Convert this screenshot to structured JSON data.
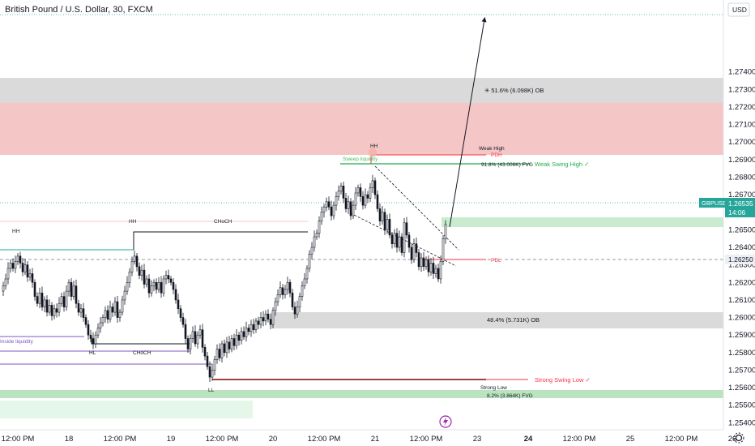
{
  "chart_data": {
    "type": "candlestick",
    "title": "British Pound / U.S. Dollar, 30, FXCM",
    "currency": "USD",
    "symbol": "GBPUSD",
    "ylim": [
      1.2536,
      1.2781
    ],
    "y_ticks": [
      "1.27400",
      "1.27300",
      "1.27200",
      "1.27100",
      "1.27000",
      "1.26900",
      "1.26800",
      "1.26700",
      "1.26600",
      "1.26500",
      "1.26400",
      "1.26300",
      "1.26200",
      "1.26100",
      "1.26000",
      "1.25900",
      "1.25800",
      "1.25700",
      "1.25600",
      "1.25500",
      "1.25400"
    ],
    "x_ticks": [
      "12:00 PM",
      "18",
      "12:00 PM",
      "19",
      "12:00 PM",
      "20",
      "12:00 PM",
      "21",
      "12:00 PM",
      "23",
      "24",
      "12:00 PM",
      "25",
      "12:00 PM",
      "26"
    ],
    "x_tick_bold_index": 10,
    "current_price": {
      "label": "GBPUSD",
      "price": "1.26535",
      "countdown": "14:06",
      "value": 1.26535
    },
    "price_tag_2": {
      "price": "1.26250",
      "value": 1.2625
    },
    "close_path": [
      [
        0,
        1.2615
      ],
      [
        3,
        1.2618
      ],
      [
        6,
        1.2622
      ],
      [
        9,
        1.2628
      ],
      [
        12,
        1.2631
      ],
      [
        15,
        1.2628
      ],
      [
        18,
        1.2632
      ],
      [
        21,
        1.2635
      ],
      [
        24,
        1.2631
      ],
      [
        27,
        1.2626
      ],
      [
        30,
        1.263
      ],
      [
        33,
        1.2623
      ],
      [
        36,
        1.2625
      ],
      [
        39,
        1.262
      ],
      [
        42,
        1.2612
      ],
      [
        45,
        1.2608
      ],
      [
        48,
        1.2614
      ],
      [
        51,
        1.2606
      ],
      [
        54,
        1.261
      ],
      [
        57,
        1.2603
      ],
      [
        60,
        1.2607
      ],
      [
        63,
        1.2601
      ],
      [
        66,
        1.2605
      ],
      [
        69,
        1.2603
      ],
      [
        72,
        1.2608
      ],
      [
        75,
        1.2612
      ],
      [
        78,
        1.2606
      ],
      [
        81,
        1.2615
      ],
      [
        84,
        1.262
      ],
      [
        87,
        1.2612
      ],
      [
        90,
        1.2618
      ],
      [
        93,
        1.2608
      ],
      [
        96,
        1.2603
      ],
      [
        99,
        1.2605
      ],
      [
        102,
        1.26
      ],
      [
        105,
        1.2596
      ],
      [
        108,
        1.259
      ],
      [
        111,
        1.2588
      ],
      [
        114,
        1.2585
      ],
      [
        117,
        1.259
      ],
      [
        120,
        1.2594
      ],
      [
        123,
        1.2597
      ],
      [
        126,
        1.26
      ],
      [
        129,
        1.2604
      ],
      [
        132,
        1.2599
      ],
      [
        135,
        1.2606
      ],
      [
        138,
        1.2603
      ],
      [
        141,
        1.2609
      ],
      [
        144,
        1.26
      ],
      [
        147,
        1.2603
      ],
      [
        150,
        1.261
      ],
      [
        153,
        1.2615
      ],
      [
        156,
        1.262
      ],
      [
        159,
        1.2626
      ],
      [
        162,
        1.2632
      ],
      [
        165,
        1.2635
      ],
      [
        168,
        1.2629
      ],
      [
        171,
        1.2624
      ],
      [
        174,
        1.2627
      ],
      [
        177,
        1.2619
      ],
      [
        180,
        1.2622
      ],
      [
        183,
        1.2614
      ],
      [
        186,
        1.2618
      ],
      [
        189,
        1.262
      ],
      [
        192,
        1.2616
      ],
      [
        195,
        1.262
      ],
      [
        198,
        1.2614
      ],
      [
        201,
        1.2622
      ],
      [
        204,
        1.2624
      ],
      [
        207,
        1.2622
      ],
      [
        210,
        1.262
      ],
      [
        213,
        1.2616
      ],
      [
        216,
        1.261
      ],
      [
        219,
        1.2605
      ],
      [
        222,
        1.26
      ],
      [
        225,
        1.2596
      ],
      [
        228,
        1.2588
      ],
      [
        231,
        1.2582
      ],
      [
        234,
        1.2588
      ],
      [
        237,
        1.2592
      ],
      [
        240,
        1.2585
      ],
      [
        243,
        1.259
      ],
      [
        246,
        1.2593
      ],
      [
        249,
        1.2583
      ],
      [
        252,
        1.2578
      ],
      [
        255,
        1.2572
      ],
      [
        258,
        1.2566
      ],
      [
        261,
        1.257
      ],
      [
        264,
        1.2576
      ],
      [
        267,
        1.2582
      ],
      [
        270,
        1.2577
      ],
      [
        273,
        1.2585
      ],
      [
        276,
        1.258
      ],
      [
        279,
        1.2586
      ],
      [
        282,
        1.2582
      ],
      [
        285,
        1.2588
      ],
      [
        288,
        1.2584
      ],
      [
        291,
        1.259
      ],
      [
        294,
        1.2587
      ],
      [
        297,
        1.2592
      ],
      [
        300,
        1.2589
      ],
      [
        303,
        1.2594
      ],
      [
        306,
        1.2592
      ],
      [
        309,
        1.2596
      ],
      [
        312,
        1.2593
      ],
      [
        315,
        1.2598
      ],
      [
        318,
        1.2596
      ],
      [
        321,
        1.26
      ],
      [
        324,
        1.2598
      ],
      [
        327,
        1.2602
      ],
      [
        330,
        1.2599
      ],
      [
        333,
        1.2596
      ],
      [
        336,
        1.2604
      ],
      [
        339,
        1.2609
      ],
      [
        342,
        1.2613
      ],
      [
        345,
        1.2617
      ],
      [
        348,
        1.2613
      ],
      [
        351,
        1.2616
      ],
      [
        354,
        1.262
      ],
      [
        357,
        1.2614
      ],
      [
        360,
        1.2606
      ],
      [
        363,
        1.2602
      ],
      [
        366,
        1.2606
      ],
      [
        369,
        1.2612
      ],
      [
        372,
        1.2618
      ],
      [
        375,
        1.2622
      ],
      [
        378,
        1.2628
      ],
      [
        381,
        1.2636
      ],
      [
        384,
        1.264
      ],
      [
        387,
        1.2646
      ],
      [
        390,
        1.2648
      ],
      [
        393,
        1.2655
      ],
      [
        396,
        1.266
      ],
      [
        399,
        1.2663
      ],
      [
        402,
        1.2666
      ],
      [
        405,
        1.2663
      ],
      [
        408,
        1.2658
      ],
      [
        411,
        1.2664
      ],
      [
        414,
        1.2669
      ],
      [
        417,
        1.2672
      ],
      [
        420,
        1.2675
      ],
      [
        423,
        1.2668
      ],
      [
        426,
        1.2662
      ],
      [
        429,
        1.2666
      ],
      [
        432,
        1.2658
      ],
      [
        435,
        1.2664
      ],
      [
        438,
        1.2671
      ],
      [
        441,
        1.2674
      ],
      [
        444,
        1.2669
      ],
      [
        447,
        1.2664
      ],
      [
        450,
        1.267
      ],
      [
        453,
        1.2668
      ],
      [
        456,
        1.2674
      ],
      [
        459,
        1.2678
      ],
      [
        462,
        1.267
      ],
      [
        465,
        1.2662
      ],
      [
        468,
        1.2655
      ],
      [
        471,
        1.266
      ],
      [
        474,
        1.265
      ],
      [
        477,
        1.2656
      ],
      [
        480,
        1.2647
      ],
      [
        483,
        1.2642
      ],
      [
        486,
        1.2648
      ],
      [
        489,
        1.264
      ],
      [
        492,
        1.2646
      ],
      [
        495,
        1.2637
      ],
      [
        498,
        1.2654
      ],
      [
        501,
        1.2647
      ],
      [
        504,
        1.264
      ],
      [
        507,
        1.2633
      ],
      [
        510,
        1.2642
      ],
      [
        513,
        1.2637
      ],
      [
        516,
        1.2629
      ],
      [
        519,
        1.2634
      ],
      [
        522,
        1.2629
      ],
      [
        525,
        1.2633
      ],
      [
        528,
        1.2626
      ],
      [
        531,
        1.2631
      ],
      [
        534,
        1.2625
      ],
      [
        537,
        1.2628
      ],
      [
        540,
        1.2622
      ],
      [
        543,
        1.2632
      ],
      [
        546,
        1.2645
      ],
      [
        549,
        1.2653
      ]
    ]
  },
  "annotations": {
    "ob_top_label": "51.6% (6.098K) OB",
    "ob_bottom_label": "48.4% (5.731K) OB",
    "fvg_top_label": "91.8% (43.006K) FVG",
    "fvg_bottom_label": "8.2% (3.864K) FVG",
    "weak_high": "Weak High",
    "weak_swing_high": "Weak Swing High",
    "pdh": "PDH",
    "pdl": "PDL",
    "strong_swing_low": "Strong Swing Low",
    "strong_low": "Strong Low",
    "inside_liquidity": "Inside liquidity",
    "hh1": "HH",
    "hh2": "HH",
    "hh3": "HH",
    "ll": "LL",
    "hl": "HL",
    "choch_top": "CHoCH",
    "choch_bottom": "CHoCH",
    "weak_sweep": "Sweep liquidity"
  },
  "colors": {
    "bull": "#131722",
    "bear": "#131722",
    "supply_zone": "#f5c6c6",
    "ob_zone": "#d6d6d6",
    "demand_zone": "#b9e4bf",
    "demand_light": "#e5f7e8",
    "accent_blue": "#2962ff",
    "red": "#f23645",
    "green": "#22ab47",
    "purple": "#8e7cc3",
    "teal": "#26a69a",
    "dark_red": "#800000"
  }
}
